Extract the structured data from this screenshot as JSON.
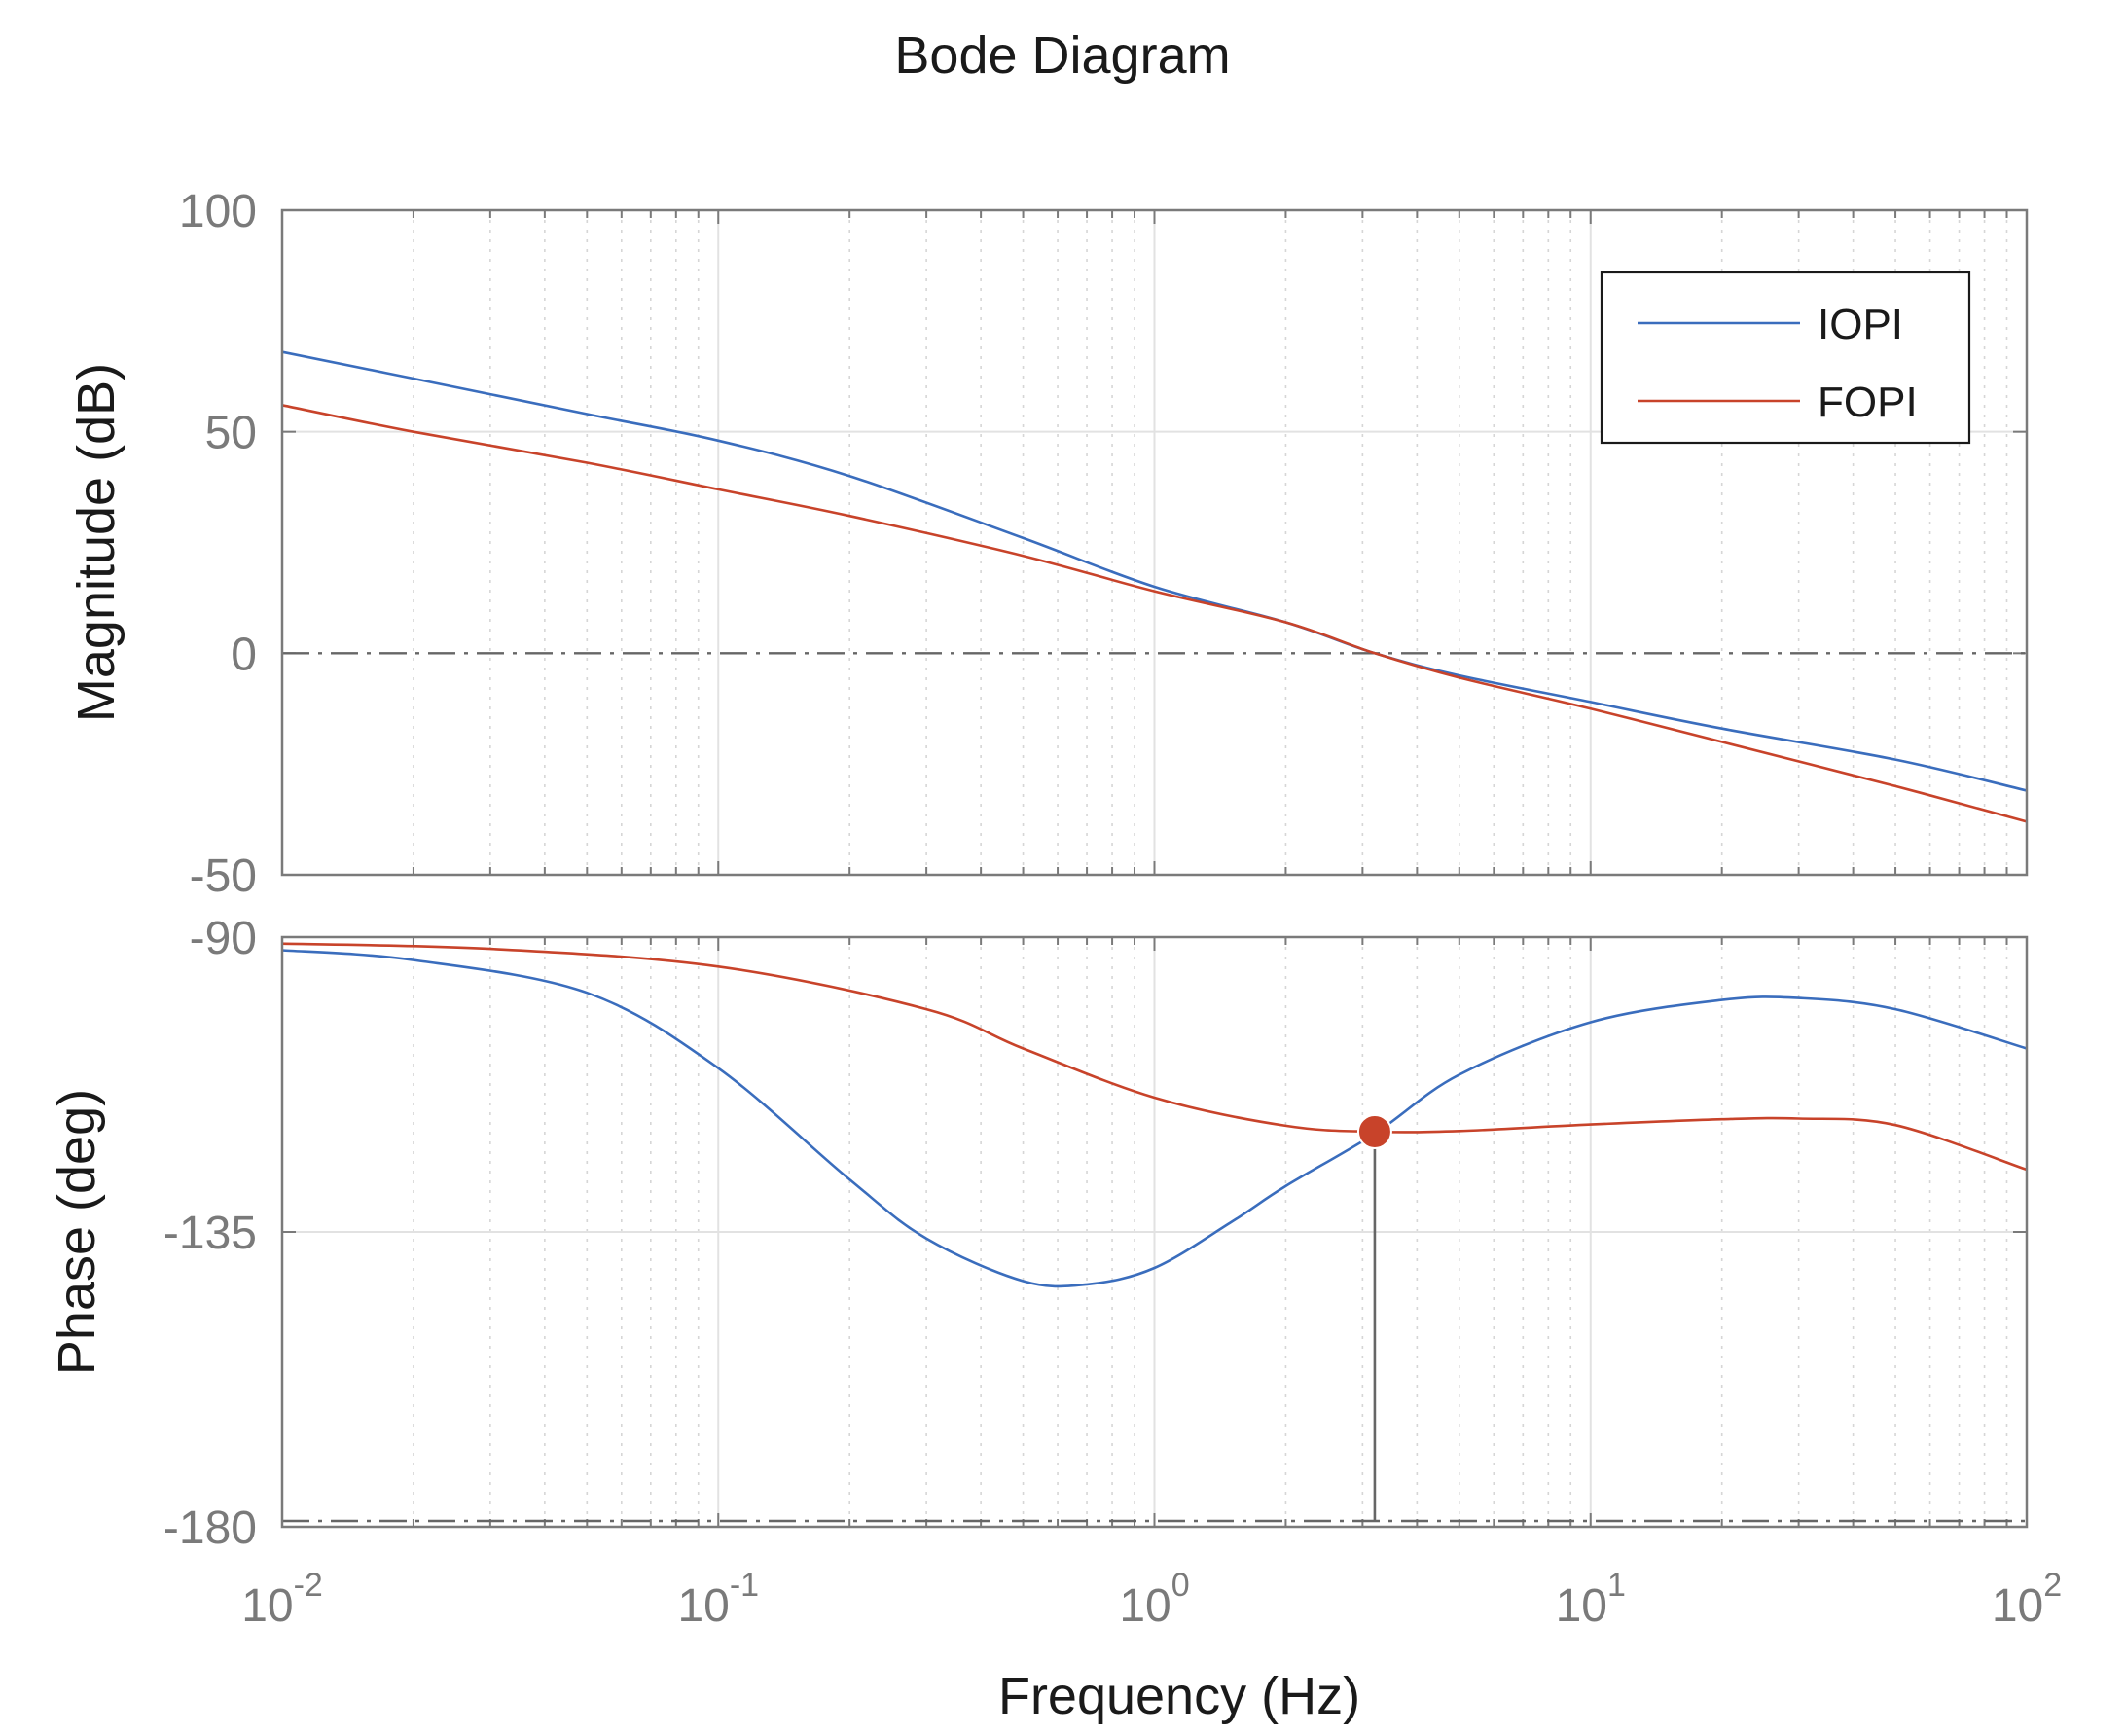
{
  "chart_data": {
    "type": "line",
    "title": "Bode Diagram",
    "xlabel": "Frequency  (Hz)",
    "xscale": "log",
    "xlim": [
      0.01,
      100
    ],
    "x_ticks": [
      {
        "base": "10",
        "exp": "-2",
        "value": 0.01
      },
      {
        "base": "10",
        "exp": "-1",
        "value": 0.1
      },
      {
        "base": "10",
        "exp": "0",
        "value": 1
      },
      {
        "base": "10",
        "exp": "1",
        "value": 10
      },
      {
        "base": "10",
        "exp": "2",
        "value": 100
      }
    ],
    "legend": {
      "placement": "top-right",
      "entries": [
        "IOPI",
        "FOPI"
      ]
    },
    "colors": {
      "IOPI": "#3a6dbd",
      "FOPI": "#c8432a",
      "marker": "#c8432a"
    },
    "panels": [
      {
        "name": "magnitude",
        "ylabel": "Magnitude (dB)",
        "ylim": [
          -50,
          100
        ],
        "y_ticks": [
          {
            "label": "100",
            "value": 100
          },
          {
            "label": "50",
            "value": 50
          },
          {
            "label": "0",
            "value": 0
          },
          {
            "label": "-50",
            "value": -50
          }
        ],
        "reference_line": 0,
        "series": [
          {
            "name": "IOPI",
            "x": [
              0.01,
              0.02,
              0.05,
              0.1,
              0.2,
              0.5,
              1,
              2,
              3.2,
              5,
              10,
              20,
              50,
              100
            ],
            "y": [
              68,
              62,
              54,
              48,
              40,
              26,
              15,
              7,
              0,
              -5,
              -11,
              -17,
              -24,
              -31
            ]
          },
          {
            "name": "FOPI",
            "x": [
              0.01,
              0.02,
              0.05,
              0.1,
              0.2,
              0.5,
              1,
              2,
              3.2,
              5,
              10,
              20,
              50,
              100
            ],
            "y": [
              56,
              50,
              43,
              37,
              31,
              22,
              14,
              7,
              0,
              -5.5,
              -12.5,
              -20,
              -30,
              -38
            ]
          }
        ]
      },
      {
        "name": "phase",
        "ylabel": "Phase (deg)",
        "ylim": [
          -180,
          -90
        ],
        "y_ticks": [
          {
            "label": "-90",
            "value": -90
          },
          {
            "label": "-135",
            "value": -135
          },
          {
            "label": "-180",
            "value": -180
          }
        ],
        "reference_line": -180,
        "series": [
          {
            "name": "IOPI",
            "x": [
              0.01,
              0.02,
              0.05,
              0.1,
              0.2,
              0.3,
              0.5,
              0.7,
              1,
              1.5,
              2,
              3.2,
              5,
              10,
              20,
              30,
              50,
              100
            ],
            "y": [
              -92,
              -93.5,
              -98.5,
              -110,
              -127,
              -136,
              -142.5,
              -143,
              -140.5,
              -133.5,
              -128,
              -120,
              -111,
              -103,
              -99.6,
              -99.3,
              -101,
              -107
            ]
          },
          {
            "name": "FOPI",
            "x": [
              0.01,
              0.03,
              0.1,
              0.3,
              0.5,
              1,
              2,
              3.2,
              5,
              10,
              20,
              30,
              50,
              100
            ],
            "y": [
              -91,
              -91.8,
              -94.5,
              -101,
              -107,
              -114.5,
              -118.8,
              -119.7,
              -119.6,
              -118.6,
              -117.8,
              -117.7,
              -118.7,
              -125.5
            ]
          }
        ],
        "marker": {
          "x": 3.2,
          "y": -119.7
        }
      }
    ]
  }
}
